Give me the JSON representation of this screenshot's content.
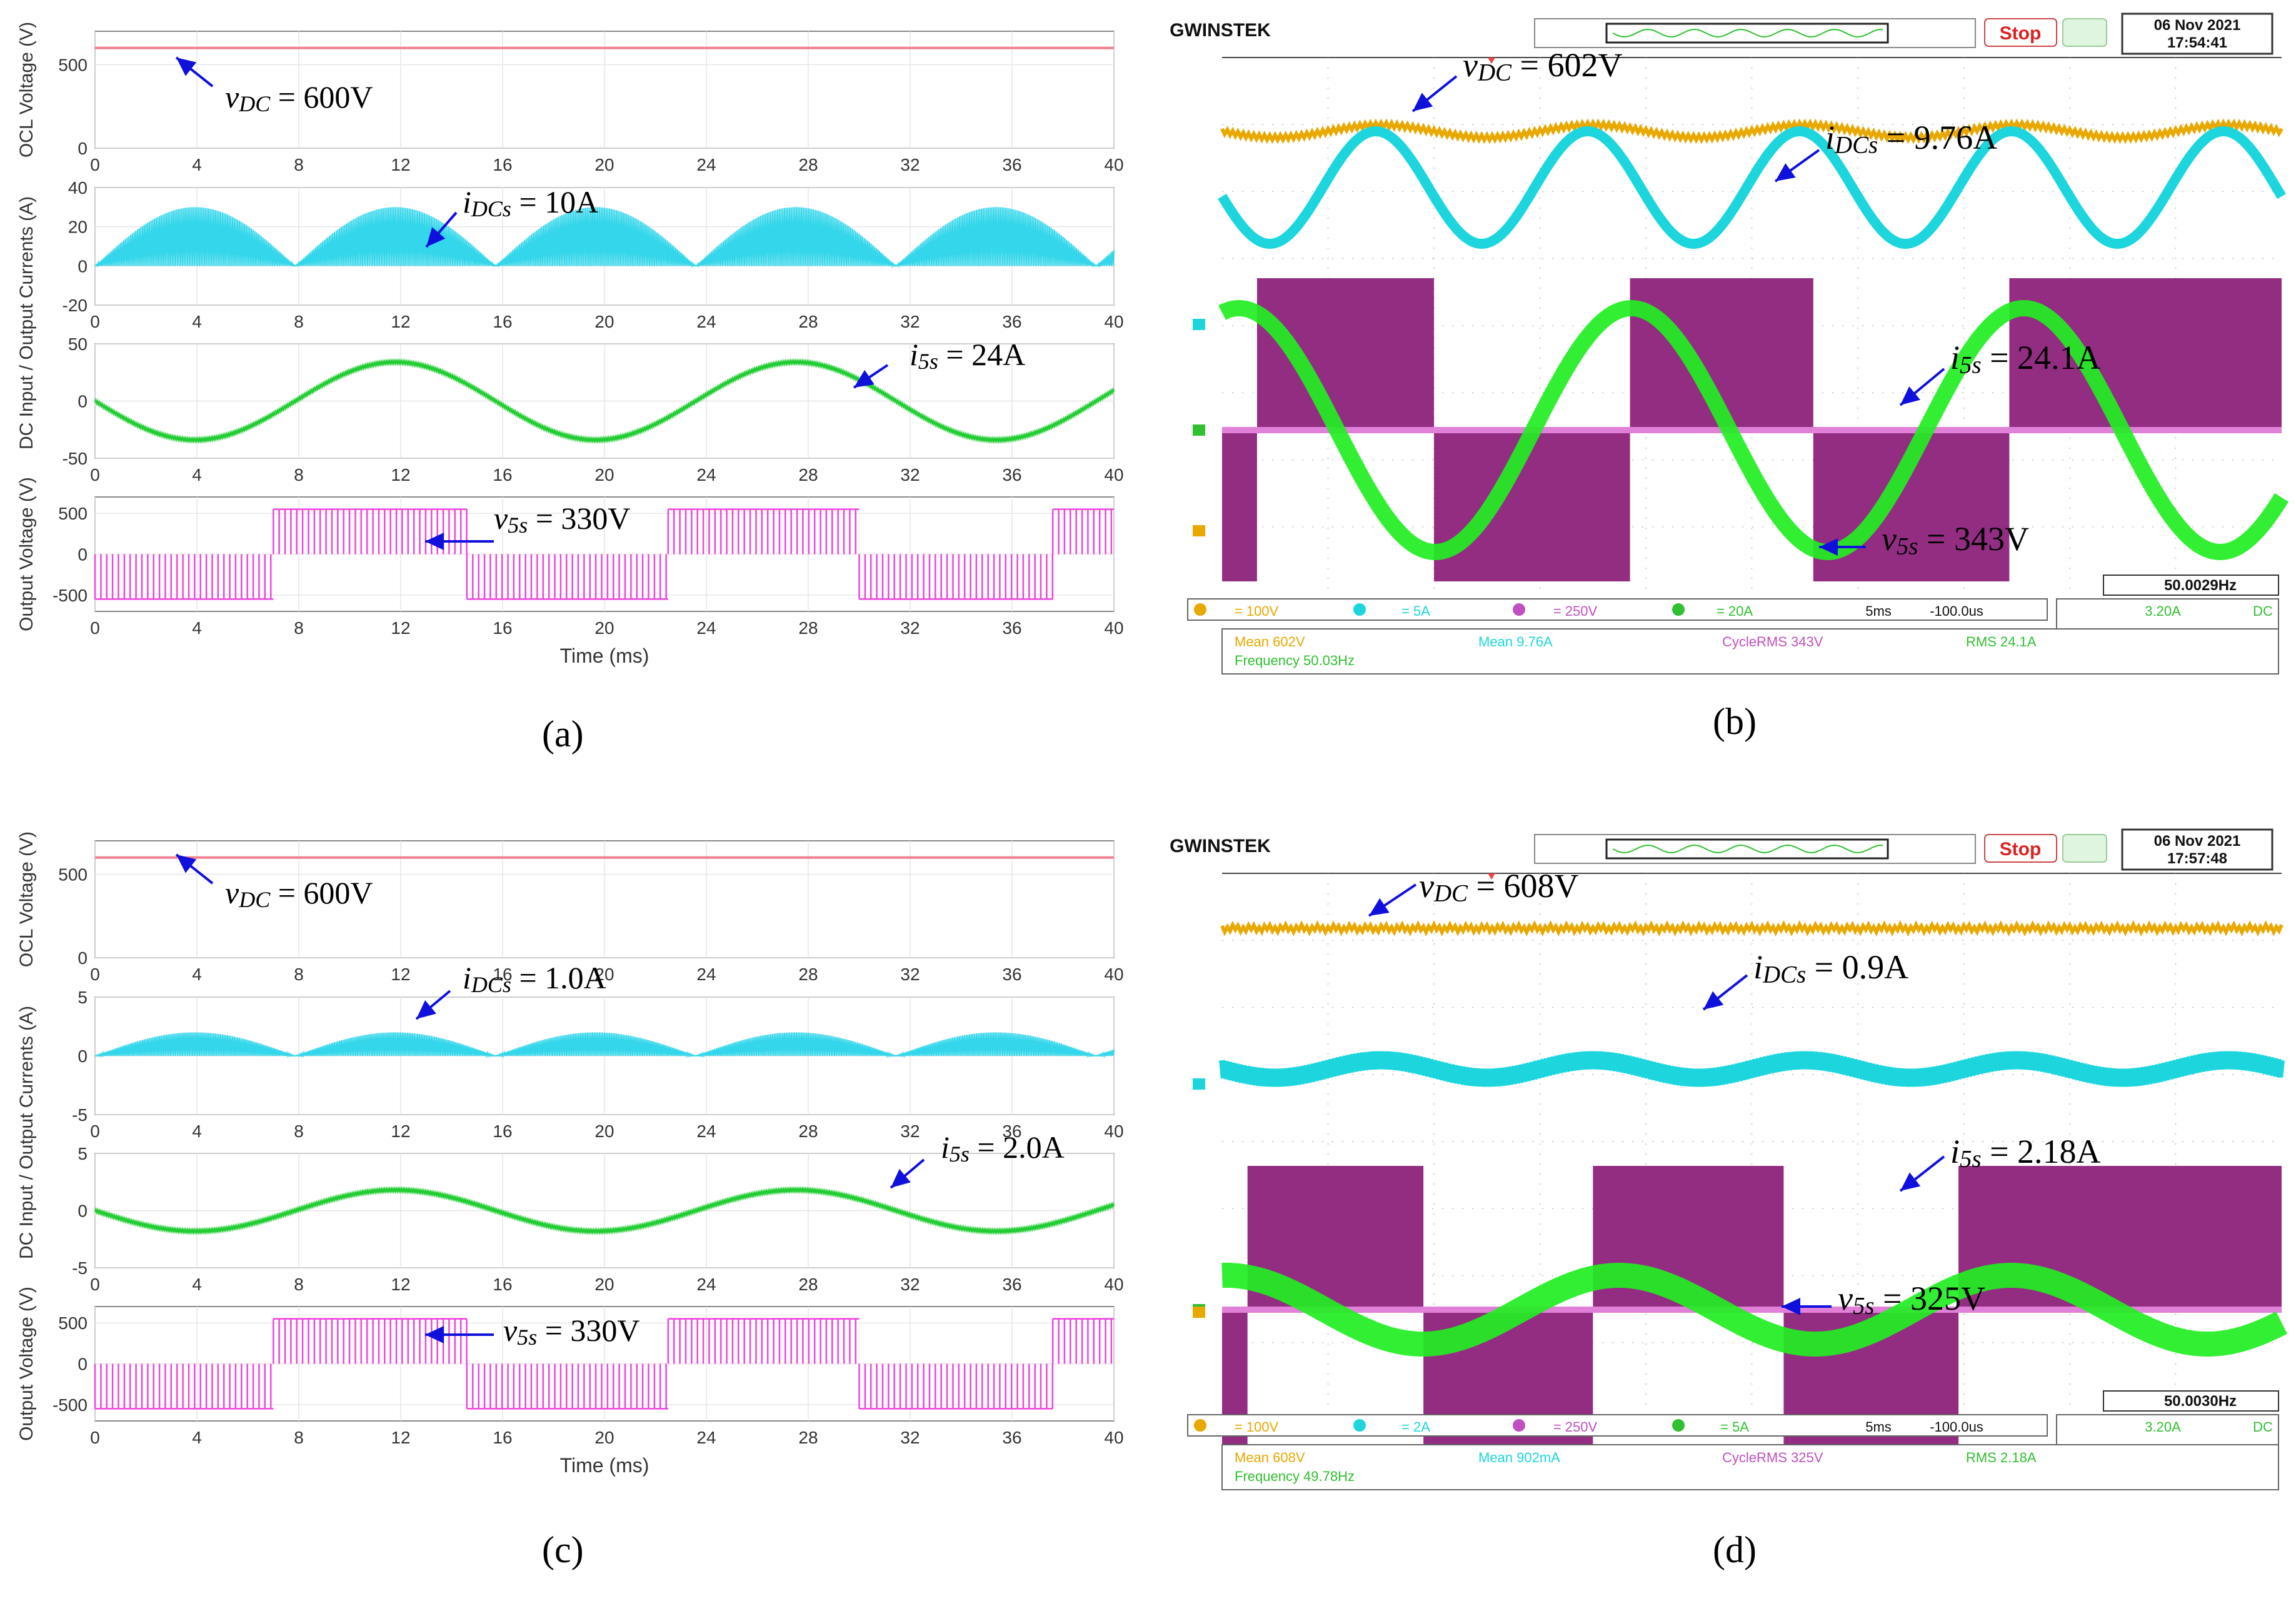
{
  "figure": {
    "panel_labels": [
      "(a)",
      "(b)",
      "(c)",
      "(d)"
    ]
  },
  "colors": {
    "vdc": "#f08090",
    "idc": "#33d6ea",
    "is": "#22cc33",
    "vs": "#ee44dd",
    "arrow": "#1010dd",
    "scope_yellow": "#e8a800",
    "scope_cyan": "#1dd6dd",
    "scope_magenta": "#922d82",
    "scope_green": "#22ee22"
  },
  "chart_data": [
    {
      "id": "a",
      "type": "line",
      "xlabel": "Time (ms)",
      "xlim": [
        0,
        40
      ],
      "xticks": [
        "0",
        "4",
        "8",
        "12",
        "16",
        "20",
        "24",
        "28",
        "32",
        "36",
        "40"
      ],
      "subplots": [
        {
          "name": "ocl",
          "ylabel": "OCL Voltage (V)",
          "ylim": [
            0,
            700
          ],
          "yticks": [
            "0",
            "500"
          ],
          "series": {
            "name": "vDC",
            "dc": 600
          },
          "annotation": {
            "sym": "v",
            "sub": "DC",
            "val": "= 600V"
          }
        },
        {
          "name": "idc",
          "ylabel": "",
          "ylim": [
            -20,
            40
          ],
          "yticks": [
            "-20",
            "0",
            "20",
            "40"
          ],
          "series": {
            "name": "iDCs",
            "peak": 30,
            "period_ms": 7.86
          },
          "annotation": {
            "sym": "i",
            "sub": "DCs",
            "val": "= 10A"
          }
        },
        {
          "name": "is",
          "ylabel": "",
          "ylim": [
            -50,
            50
          ],
          "yticks": [
            "-50",
            "0",
            "50"
          ],
          "series": {
            "name": "i5s",
            "amplitude": 34,
            "freq_hz": 63.6,
            "sign": -1
          },
          "annotation": {
            "sym": "i",
            "sub": "5s",
            "val": "= 24A"
          }
        },
        {
          "name": "vs",
          "ylabel": "Output Voltage (V)",
          "ylim": [
            -700,
            700
          ],
          "yticks": [
            "-500",
            "0",
            "500"
          ],
          "series": {
            "name": "v5s",
            "level": 550
          },
          "annotation": {
            "sym": "v",
            "sub": "5s",
            "val": "= 330V"
          }
        }
      ],
      "shared_ylabel": "DC Input / Output Currents (A)"
    },
    {
      "id": "c",
      "type": "line",
      "xlabel": "Time (ms)",
      "xlim": [
        0,
        40
      ],
      "xticks": [
        "0",
        "4",
        "8",
        "12",
        "16",
        "20",
        "24",
        "28",
        "32",
        "36",
        "40"
      ],
      "subplots": [
        {
          "name": "ocl",
          "ylabel": "OCL Voltage (V)",
          "ylim": [
            0,
            700
          ],
          "yticks": [
            "0",
            "500"
          ],
          "series": {
            "name": "vDC",
            "dc": 600
          },
          "annotation": {
            "sym": "v",
            "sub": "DC",
            "val": "= 600V"
          }
        },
        {
          "name": "idc",
          "ylabel": "",
          "ylim": [
            -5,
            5
          ],
          "yticks": [
            "-5",
            "0",
            "5"
          ],
          "series": {
            "name": "iDCs",
            "peak": 2.0,
            "period_ms": 7.86
          },
          "annotation": {
            "sym": "i",
            "sub": "DCs",
            "val": "= 1.0A"
          }
        },
        {
          "name": "is",
          "ylabel": "",
          "ylim": [
            -5,
            5
          ],
          "yticks": [
            "-5",
            "0",
            "5"
          ],
          "series": {
            "name": "i5s",
            "amplitude": 1.8,
            "freq_hz": 63.6,
            "sign": -1
          },
          "annotation": {
            "sym": "i",
            "sub": "5s",
            "val": "= 2.0A"
          }
        },
        {
          "name": "vs",
          "ylabel": "Output Voltage (V)",
          "ylim": [
            -700,
            700
          ],
          "yticks": [
            "-500",
            "0",
            "500"
          ],
          "series": {
            "name": "v5s",
            "level": 550
          },
          "annotation": {
            "sym": "v",
            "sub": "5s",
            "val": "= 330V"
          }
        }
      ],
      "shared_ylabel": "DC Input / Output Currents (A)"
    },
    {
      "id": "b",
      "type": "oscilloscope",
      "brand": "GWINSTEK",
      "stop_label": "Stop",
      "date": "06 Nov 2021",
      "time": "17:54:41",
      "freq_readout": "50.0029Hz",
      "channels": [
        {
          "name": "vDC",
          "scale": "100V",
          "measure": "Mean 602V"
        },
        {
          "name": "iDCs",
          "scale": "5A",
          "measure": "Mean 9.76A"
        },
        {
          "name": "v5s",
          "scale": "250V",
          "measure": "CycleRMS 343V"
        },
        {
          "name": "i5s",
          "scale": "20A",
          "measure": "RMS 24.1A"
        }
      ],
      "timebase": "5ms",
      "hpos": "-100.0us",
      "trigger": "3.20A",
      "trigger_mode": "DC",
      "frequency_measure": "Frequency 50.03Hz",
      "annotations": [
        {
          "sym": "v",
          "sub": "DC",
          "val": "= 602V"
        },
        {
          "sym": "i",
          "sub": "DCs",
          "val": "= 9.76A"
        },
        {
          "sym": "i",
          "sub": "5s",
          "val": "= 24.1A"
        },
        {
          "sym": "v",
          "sub": "5s",
          "val": "= 343V"
        }
      ]
    },
    {
      "id": "d",
      "type": "oscilloscope",
      "brand": "GWINSTEK",
      "stop_label": "Stop",
      "date": "06 Nov 2021",
      "time": "17:57:48",
      "freq_readout": "50.0030Hz",
      "channels": [
        {
          "name": "vDC",
          "scale": "100V",
          "measure": "Mean 608V"
        },
        {
          "name": "iDCs",
          "scale": "2A",
          "measure": "Mean 902mA"
        },
        {
          "name": "v5s",
          "scale": "250V",
          "measure": "CycleRMS 325V"
        },
        {
          "name": "i5s",
          "scale": "5A",
          "measure": "RMS 2.18A"
        }
      ],
      "timebase": "5ms",
      "hpos": "-100.0us",
      "trigger": "3.20A",
      "trigger_mode": "DC",
      "frequency_measure": "Frequency 49.78Hz",
      "annotations": [
        {
          "sym": "v",
          "sub": "DC",
          "val": "= 608V"
        },
        {
          "sym": "i",
          "sub": "DCs",
          "val": "= 0.9A"
        },
        {
          "sym": "i",
          "sub": "5s",
          "val": "= 2.18A"
        },
        {
          "sym": "v",
          "sub": "5s",
          "val": "= 325V"
        }
      ]
    }
  ]
}
